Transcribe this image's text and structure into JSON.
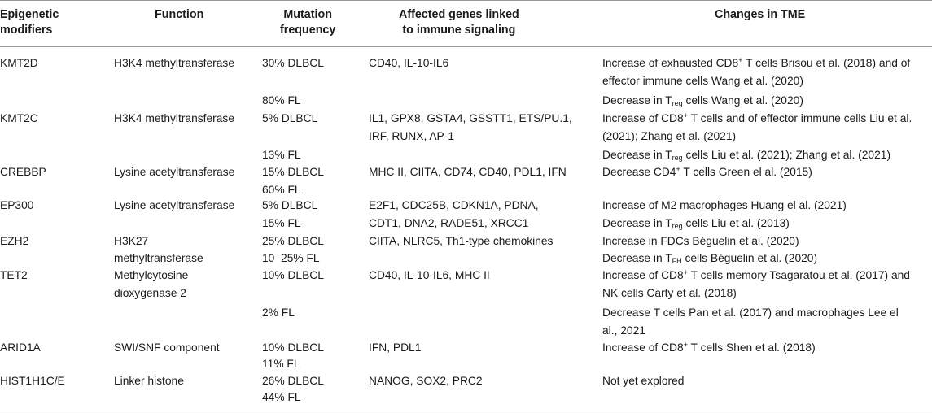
{
  "header": {
    "col0_line1": "Epigenetic",
    "col0_line2": "modifiers",
    "col1": "Function",
    "col2_line1": "Mutation",
    "col2_line2": "frequency",
    "col3_line1": "Affected genes linked",
    "col3_line2": "to immune signaling",
    "col4": "Changes in TME"
  },
  "rows": {
    "kmt2d": {
      "modifier": "KMT2D",
      "function": "H3K4 methyltransferase",
      "freq1": "30% DLBCL",
      "genes": "CD40, IL-10-IL6",
      "tme1_a": "Increase of exhausted CD8",
      "sup1": "+",
      "tme1_b": " T cells Brisou et al. (2018) and of",
      "tme1_l2": "effector immune cells Wang et al. (2020)",
      "freq2": "80% FL",
      "tme2_a": "Decrease in T",
      "sub2": "reg",
      "tme2_b": " cells Wang et al. (2020)"
    },
    "kmt2c": {
      "modifier": "KMT2C",
      "function": "H3K4 methyltransferase",
      "freq1": "5% DLBCL",
      "genes_l1": "IL1, GPX8, GSTA4, GSSTT1, ETS/PU.1,",
      "genes_l2": "IRF, RUNX, AP-1",
      "tme1_a": "Increase of CD8",
      "sup1": "+",
      "tme1_b": " T cells and of effector immune cells Liu et al.",
      "tme1_l2": "(2021); Zhang et al. (2021)",
      "freq2": "13% FL",
      "tme2_a": "Decrease in T",
      "sub2": "reg",
      "tme2_b": " cells Liu et al. (2021); Zhang et al. (2021)"
    },
    "crebbp": {
      "modifier": "CREBBP",
      "function": "Lysine acetyltransferase",
      "freq1": "15% DLBCL",
      "freq2": "60% FL",
      "genes": "MHC II, CIITA, CD74, CD40, PDL1, IFN",
      "tme1_a": "Decrease CD4",
      "sup1": "+",
      "tme1_b": " T cells Green el al. (2015)"
    },
    "ep300": {
      "modifier": "EP300",
      "function": "Lysine acetyltransferase",
      "freq1": "5% DLBCL",
      "freq2": "15% FL",
      "genes_l1": "E2F1, CDC25B, CDKN1A, PDNA,",
      "genes_l2": "CDT1, DNA2, RADE51, XRCC1",
      "tme1": "Increase of M2 macrophages Huang el al. (2021)",
      "tme2_a": "Decrease in T",
      "sub2": "reg",
      "tme2_b": " cells Liu et al. (2013)"
    },
    "ezh2": {
      "modifier": "EZH2",
      "function_l1": "H3K27",
      "function_l2": "methyltransferase",
      "freq1": "25% DLBCL",
      "freq2": "10–25% FL",
      "genes": "CIITA, NLRC5, Th1-type chemokines",
      "tme1": "Increase in FDCs Béguelin et al. (2020)",
      "tme2_a": "Decrease in T",
      "sub2": "FH",
      "tme2_b": " cells Béguelin et al. (2020)"
    },
    "tet2": {
      "modifier": "TET2",
      "function_l1": "Methylcytosine",
      "function_l2": "dioxygenase 2",
      "freq1": "10% DLBCL",
      "genes": "CD40, IL-10-IL6, MHC II",
      "tme1_a": "Increase of CD8",
      "sup1": "+",
      "tme1_b": " T cells memory Tsagaratou et al. (2017) and",
      "tme1_l2": "NK cells Carty et al. (2018)",
      "freq2": "2% FL",
      "tme2_l1": "Decrease T cells Pan et al. (2017) and macrophages Lee el",
      "tme2_l2": "al., 2021"
    },
    "arid1a": {
      "modifier": "ARID1A",
      "function": "SWI/SNF component",
      "freq1": "10% DLBCL",
      "freq2": "11% FL",
      "genes": "IFN, PDL1",
      "tme1_a": "Increase of CD8",
      "sup1": "+",
      "tme1_b": " T cells Shen et al. (2018)"
    },
    "hist1h1": {
      "modifier": "HIST1H1C/E",
      "function": "Linker histone",
      "freq1": "26% DLBCL",
      "freq2": "44% FL",
      "genes": "NANOG, SOX2, PRC2",
      "tme1": "Not yet explored"
    }
  }
}
